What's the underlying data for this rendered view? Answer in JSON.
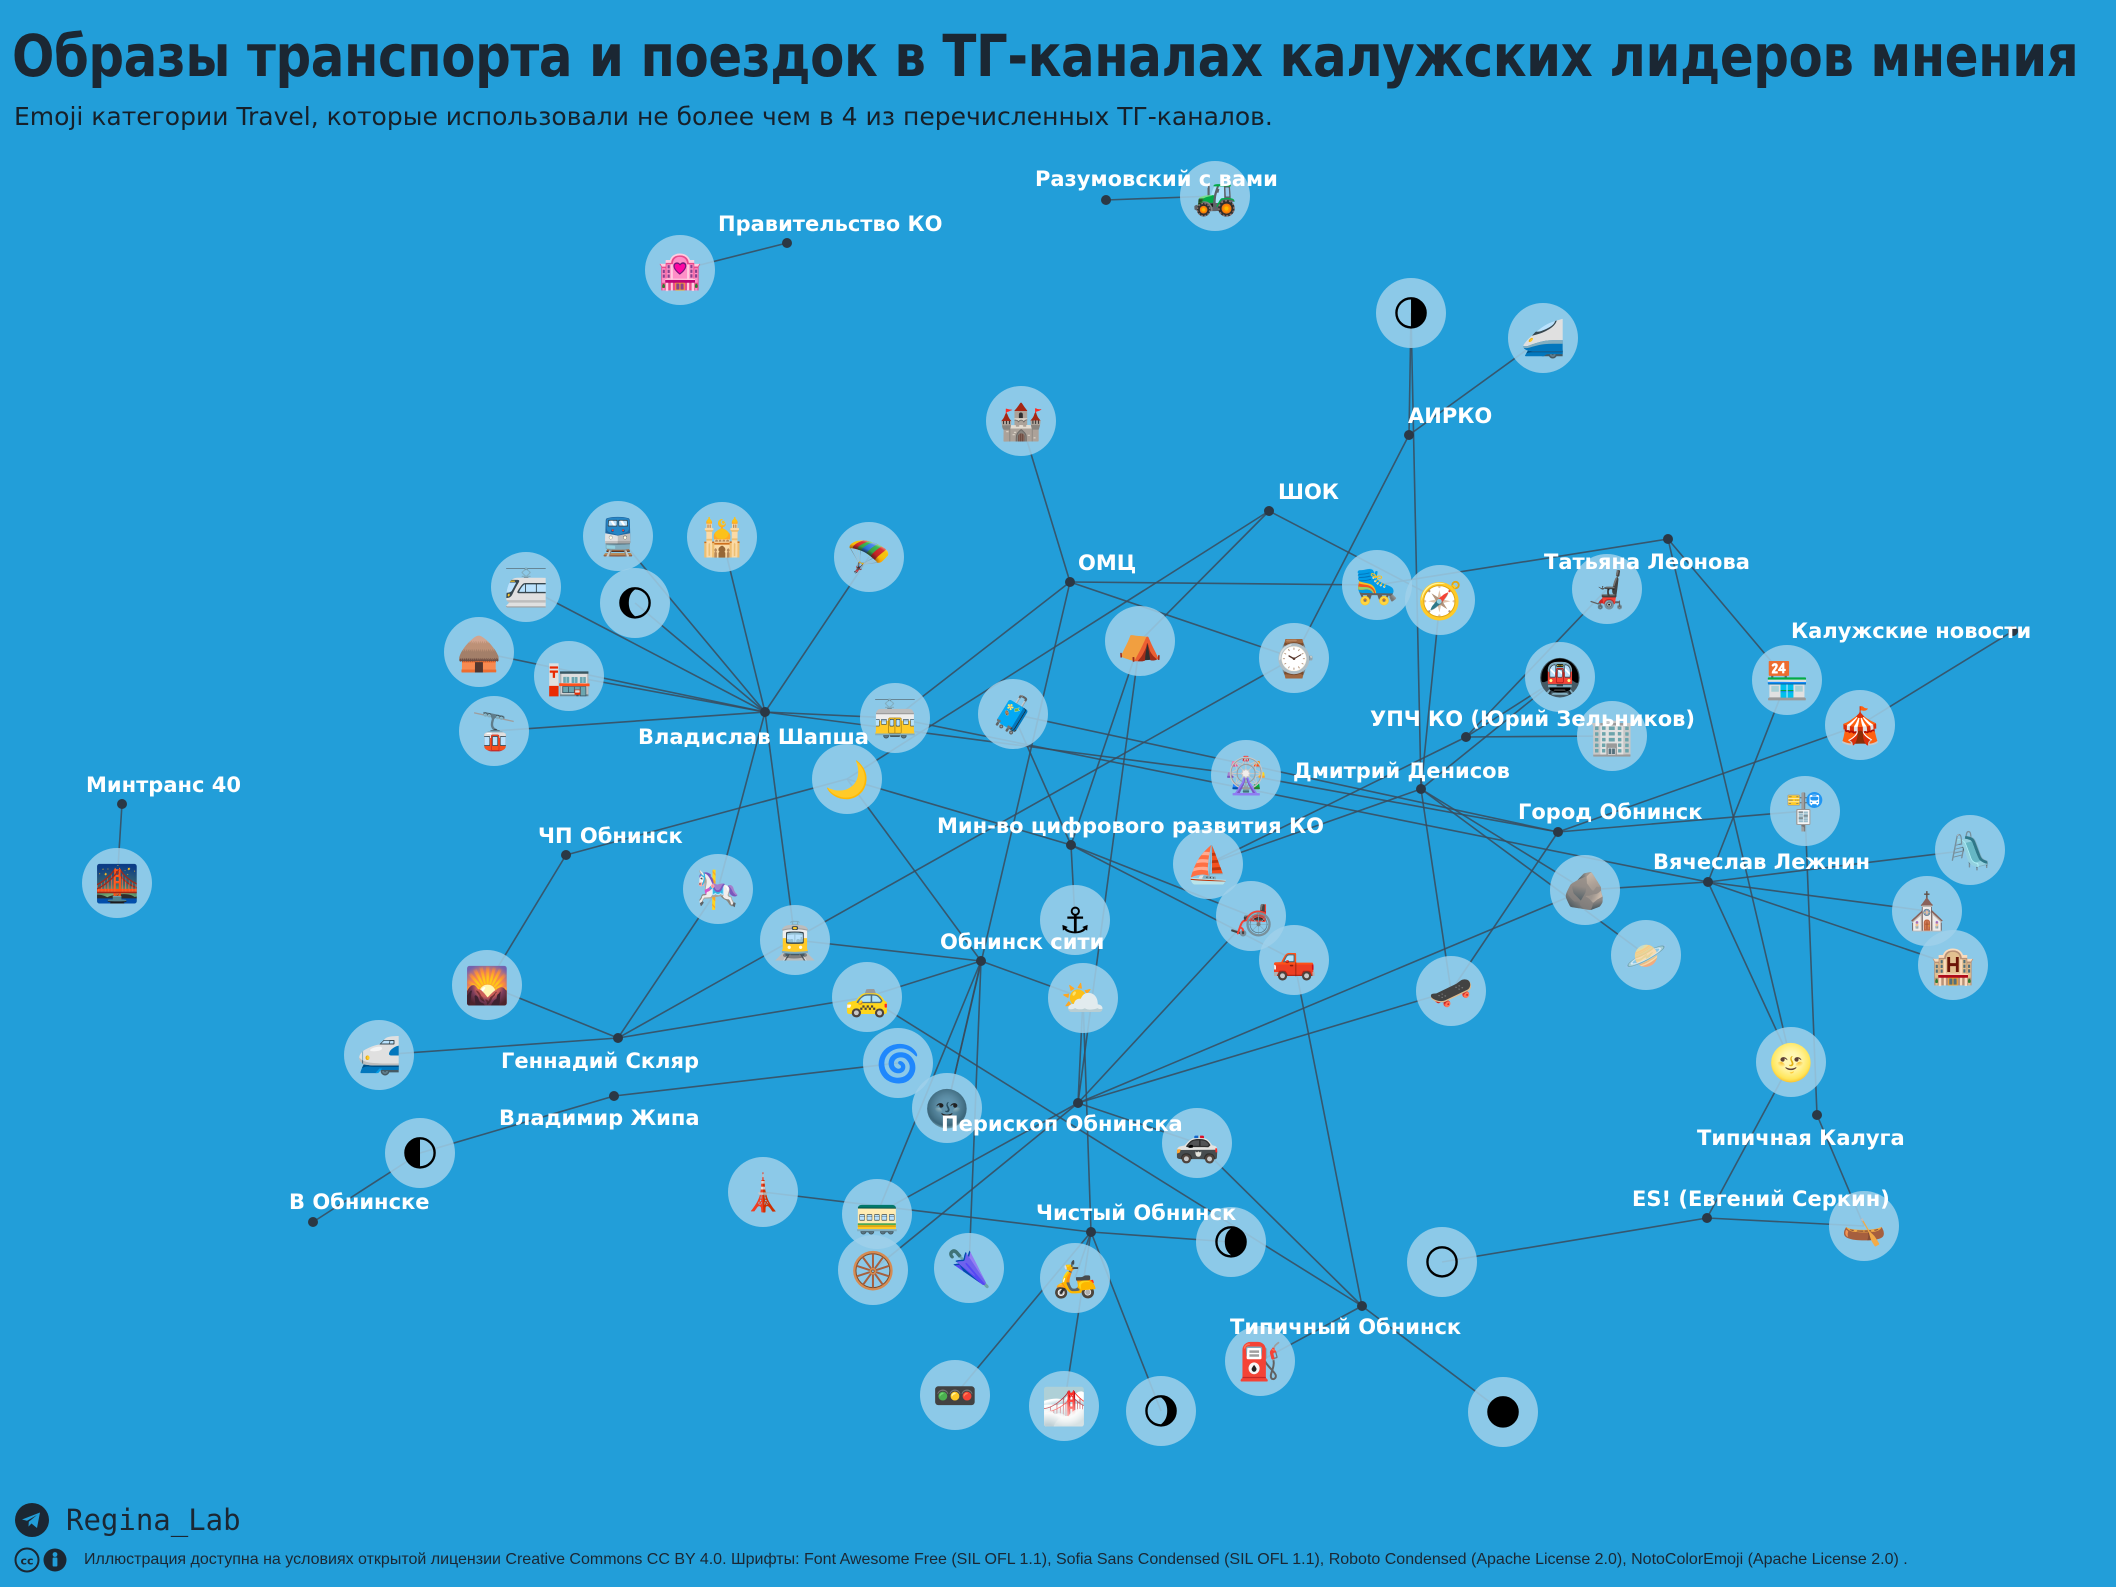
{
  "header": {
    "title": "Образы транспорта и поездок в ТГ-каналах калужских лидеров мнения",
    "subtitle": "Emoji категории Travel, которые использовали  не более чем в 4 из перечисленных ТГ-каналов."
  },
  "colors": {
    "background": "#229ed9",
    "edge": "#3a4a5a",
    "node_dot": "#2b3845",
    "emoji_circle": "#9fd0ea",
    "label": "#ffffff",
    "title": "#1b2733"
  },
  "channels": [
    {
      "id": "ch-razumovsky",
      "label": "Разумовский с вами"
    },
    {
      "id": "ch-pravitelstvo",
      "label": "Правительство КО"
    },
    {
      "id": "ch-airko",
      "label": "АИРКО"
    },
    {
      "id": "ch-shok",
      "label": "ШОК"
    },
    {
      "id": "ch-omc",
      "label": "ОМЦ"
    },
    {
      "id": "ch-leonova",
      "label": "Татьяна Леонова"
    },
    {
      "id": "ch-kaluga-news",
      "label": "Калужские новости"
    },
    {
      "id": "ch-upch",
      "label": "УПЧ КО (Юрий Зельников)"
    },
    {
      "id": "ch-shapsha",
      "label": "Владислав Шапша"
    },
    {
      "id": "ch-denisov",
      "label": "Дмитрий Денисов"
    },
    {
      "id": "ch-mintrans",
      "label": "Минтранс 40"
    },
    {
      "id": "ch-gorod-obninsk",
      "label": "Город Обнинск"
    },
    {
      "id": "ch-chp-obninsk",
      "label": "ЧП Обнинск"
    },
    {
      "id": "ch-mincifry",
      "label": "Мин-во цифрового развития КО"
    },
    {
      "id": "ch-lezhnin",
      "label": "Вячеслав Лежнин"
    },
    {
      "id": "ch-obninsk-city",
      "label": "Обнинск сити"
    },
    {
      "id": "ch-sklyar",
      "label": "Геннадий Скляр"
    },
    {
      "id": "ch-zhipa",
      "label": "Владимир Жипа"
    },
    {
      "id": "ch-periskop",
      "label": "Перископ Обнинска"
    },
    {
      "id": "ch-tipichnaya-kaluga",
      "label": "Типичная Калуга"
    },
    {
      "id": "ch-v-obninske",
      "label": "В Обнинске"
    },
    {
      "id": "ch-es-serkin",
      "label": "ES! (Евгений Серкин)"
    },
    {
      "id": "ch-chisty-obninsk",
      "label": "Чистый Обнинск"
    },
    {
      "id": "ch-tipichny-obninsk",
      "label": "Типичный Обнинск"
    }
  ],
  "emojis": [
    {
      "id": "e-tractor",
      "glyph": "🚜",
      "name": "tractor"
    },
    {
      "id": "e-love-hotel",
      "glyph": "🏩",
      "name": "love hotel"
    },
    {
      "id": "e-last-quarter-moon",
      "glyph": "🌗",
      "name": "last quarter moon"
    },
    {
      "id": "e-bullet-train",
      "glyph": "🚄",
      "name": "high-speed train"
    },
    {
      "id": "e-castle",
      "glyph": "🏰",
      "name": "castle"
    },
    {
      "id": "e-train",
      "glyph": "🚆",
      "name": "train"
    },
    {
      "id": "e-mosque",
      "glyph": "🕌",
      "name": "mosque"
    },
    {
      "id": "e-parachute",
      "glyph": "🪂",
      "name": "parachute"
    },
    {
      "id": "e-light-rail",
      "glyph": "🚈",
      "name": "light rail"
    },
    {
      "id": "e-waxing-gibbous",
      "glyph": "🌔",
      "name": "waxing gibbous moon"
    },
    {
      "id": "e-hut",
      "glyph": "🛖",
      "name": "hut"
    },
    {
      "id": "e-post-office",
      "glyph": "🏣",
      "name": "japanese post office"
    },
    {
      "id": "e-aerial-tramway",
      "glyph": "🚡",
      "name": "aerial tramway"
    },
    {
      "id": "e-tram-car",
      "glyph": "🚋",
      "name": "tram car"
    },
    {
      "id": "e-crescent-moon",
      "glyph": "🌙",
      "name": "crescent moon"
    },
    {
      "id": "e-luggage",
      "glyph": "🧳",
      "name": "luggage"
    },
    {
      "id": "e-tent",
      "glyph": "⛺",
      "name": "tent"
    },
    {
      "id": "e-watch",
      "glyph": "⌚",
      "name": "watch"
    },
    {
      "id": "e-roller-skate",
      "glyph": "🛼",
      "name": "roller skate"
    },
    {
      "id": "e-compass",
      "glyph": "🧭",
      "name": "compass"
    },
    {
      "id": "e-wheelchair",
      "glyph": "🦼",
      "name": "motorized wheelchair"
    },
    {
      "id": "e-metro",
      "glyph": "🚇",
      "name": "metro"
    },
    {
      "id": "e-convenience-store",
      "glyph": "🏪",
      "name": "convenience store"
    },
    {
      "id": "e-circus-tent",
      "glyph": "🎪",
      "name": "circus tent"
    },
    {
      "id": "e-office-building",
      "glyph": "🏢",
      "name": "office building"
    },
    {
      "id": "e-ferris-wheel",
      "glyph": "🎡",
      "name": "ferris wheel"
    },
    {
      "id": "e-bus-stop",
      "glyph": "🚏",
      "name": "bus stop"
    },
    {
      "id": "e-playground-slide",
      "glyph": "🛝",
      "name": "playground slide"
    },
    {
      "id": "e-bridge-at-night",
      "glyph": "🌉",
      "name": "bridge at night"
    },
    {
      "id": "e-carousel-horse",
      "glyph": "🎠",
      "name": "carousel horse"
    },
    {
      "id": "e-sailboat",
      "glyph": "⛵",
      "name": "sailboat"
    },
    {
      "id": "e-rock",
      "glyph": "🪨",
      "name": "rock"
    },
    {
      "id": "e-anchor",
      "glyph": "⚓",
      "name": "anchor"
    },
    {
      "id": "e-manual-wheelchair",
      "glyph": "🦽",
      "name": "manual wheelchair"
    },
    {
      "id": "e-church",
      "glyph": "⛪",
      "name": "church"
    },
    {
      "id": "e-sunrise-mountains",
      "glyph": "🌄",
      "name": "sunrise over mountains"
    },
    {
      "id": "e-tram",
      "glyph": "🚊",
      "name": "tram"
    },
    {
      "id": "e-pickup-truck",
      "glyph": "🛻",
      "name": "pickup truck"
    },
    {
      "id": "e-ringed-planet",
      "glyph": "🪐",
      "name": "ringed planet"
    },
    {
      "id": "e-hotel",
      "glyph": "🏨",
      "name": "hotel"
    },
    {
      "id": "e-taxi",
      "glyph": "🚕",
      "name": "taxi"
    },
    {
      "id": "e-sun-behind-cloud",
      "glyph": "⛅",
      "name": "sun behind cloud"
    },
    {
      "id": "e-skateboard",
      "glyph": "🛹",
      "name": "skateboard"
    },
    {
      "id": "e-shinkansen",
      "glyph": "🚅",
      "name": "bullet train"
    },
    {
      "id": "e-cyclone",
      "glyph": "🌀",
      "name": "cyclone"
    },
    {
      "id": "e-new-moon-face",
      "glyph": "🌚",
      "name": "new moon face"
    },
    {
      "id": "e-full-moon-face",
      "glyph": "🌝",
      "name": "full moon face"
    },
    {
      "id": "e-first-quarter-moon",
      "glyph": "🌓",
      "name": "first quarter moon"
    },
    {
      "id": "e-police-car",
      "glyph": "🚓",
      "name": "police car"
    },
    {
      "id": "e-tokyo-tower",
      "glyph": "🗼",
      "name": "tokyo tower"
    },
    {
      "id": "e-railway-car",
      "glyph": "🚃",
      "name": "railway car"
    },
    {
      "id": "e-canoe",
      "glyph": "🛶",
      "name": "canoe"
    },
    {
      "id": "e-wheel",
      "glyph": "🛞",
      "name": "wheel"
    },
    {
      "id": "e-umbrella",
      "glyph": "🌂",
      "name": "closed umbrella"
    },
    {
      "id": "e-motor-scooter",
      "glyph": "🛵",
      "name": "motor scooter"
    },
    {
      "id": "e-waning-crescent",
      "glyph": "🌘",
      "name": "waning crescent moon"
    },
    {
      "id": "e-full-moon",
      "glyph": "🌕",
      "name": "full moon"
    },
    {
      "id": "e-fuel-pump",
      "glyph": "⛽",
      "name": "fuel pump"
    },
    {
      "id": "e-traffic-light",
      "glyph": "🚥",
      "name": "horizontal traffic light"
    },
    {
      "id": "e-bridge-fog",
      "glyph": "🌁",
      "name": "foggy"
    },
    {
      "id": "e-waning-gibbous",
      "glyph": "🌖",
      "name": "waning gibbous moon"
    },
    {
      "id": "e-new-moon",
      "glyph": "🌑",
      "name": "new moon"
    }
  ],
  "edges": [
    [
      "ch-razumovsky",
      "e-tractor"
    ],
    [
      "ch-pravitelstvo",
      "e-love-hotel"
    ],
    [
      "ch-airko",
      "e-last-quarter-moon"
    ],
    [
      "ch-airko",
      "e-bullet-train"
    ],
    [
      "ch-airko",
      "e-watch"
    ],
    [
      "ch-omc",
      "e-castle"
    ],
    [
      "ch-omc",
      "e-roller-skate"
    ],
    [
      "ch-omc",
      "e-tram-car"
    ],
    [
      "ch-omc",
      "e-watch"
    ],
    [
      "ch-omc",
      "e-new-moon-face"
    ],
    [
      "ch-shok",
      "e-tent"
    ],
    [
      "ch-shok",
      "e-compass"
    ],
    [
      "ch-shok",
      "e-crescent-moon"
    ],
    [
      "ch-leonova",
      "e-roller-skate"
    ],
    [
      "ch-leonova",
      "e-convenience-store"
    ],
    [
      "ch-leonova",
      "e-full-moon-face"
    ],
    [
      "ch-kaluga-news",
      "e-circus-tent"
    ],
    [
      "ch-upch",
      "e-wheelchair"
    ],
    [
      "ch-upch",
      "e-metro"
    ],
    [
      "ch-upch",
      "e-office-building"
    ],
    [
      "ch-upch",
      "e-sailboat"
    ],
    [
      "ch-shapsha",
      "e-train"
    ],
    [
      "ch-shapsha",
      "e-mosque"
    ],
    [
      "ch-shapsha",
      "e-parachute"
    ],
    [
      "ch-shapsha",
      "e-light-rail"
    ],
    [
      "ch-shapsha",
      "e-waxing-gibbous"
    ],
    [
      "ch-shapsha",
      "e-hut"
    ],
    [
      "ch-shapsha",
      "e-post-office"
    ],
    [
      "ch-shapsha",
      "e-aerial-tramway"
    ],
    [
      "ch-shapsha",
      "e-tram-car"
    ],
    [
      "ch-shapsha",
      "e-carousel-horse"
    ],
    [
      "ch-shapsha",
      "e-tram"
    ],
    [
      "ch-shapsha",
      "e-ferris-wheel"
    ],
    [
      "ch-denisov",
      "e-compass"
    ],
    [
      "ch-denisov",
      "e-metro"
    ],
    [
      "ch-denisov",
      "e-sailboat"
    ],
    [
      "ch-denisov",
      "e-rock"
    ],
    [
      "ch-denisov",
      "e-ringed-planet"
    ],
    [
      "ch-denisov",
      "e-skateboard"
    ],
    [
      "ch-denisov",
      "e-last-quarter-moon"
    ],
    [
      "ch-mintrans",
      "e-bridge-at-night"
    ],
    [
      "ch-gorod-obninsk",
      "e-bus-stop"
    ],
    [
      "ch-gorod-obninsk",
      "e-circus-tent"
    ],
    [
      "ch-gorod-obninsk",
      "e-ferris-wheel"
    ],
    [
      "ch-gorod-obninsk",
      "e-skateboard"
    ],
    [
      "ch-gorod-obninsk",
      "e-luggage"
    ],
    [
      "ch-chp-obninsk",
      "e-crescent-moon"
    ],
    [
      "ch-chp-obninsk",
      "e-sunrise-mountains"
    ],
    [
      "ch-mincifry",
      "e-luggage"
    ],
    [
      "ch-mincifry",
      "e-crescent-moon"
    ],
    [
      "ch-mincifry",
      "e-manual-wheelchair"
    ],
    [
      "ch-mincifry",
      "e-pickup-truck"
    ],
    [
      "ch-mincifry",
      "e-anchor"
    ],
    [
      "ch-mincifry",
      "e-tent"
    ],
    [
      "ch-lezhnin",
      "e-convenience-store"
    ],
    [
      "ch-lezhnin",
      "e-playground-slide"
    ],
    [
      "ch-lezhnin",
      "e-church"
    ],
    [
      "ch-lezhnin",
      "e-hotel"
    ],
    [
      "ch-lezhnin",
      "e-rock"
    ],
    [
      "ch-lezhnin",
      "e-full-moon-face"
    ],
    [
      "ch-lezhnin",
      "e-tram-car"
    ],
    [
      "ch-obninsk-city",
      "e-tram"
    ],
    [
      "ch-obninsk-city",
      "e-taxi"
    ],
    [
      "ch-obninsk-city",
      "e-sun-behind-cloud"
    ],
    [
      "ch-obninsk-city",
      "e-crescent-moon"
    ],
    [
      "ch-obninsk-city",
      "e-new-moon-face"
    ],
    [
      "ch-obninsk-city",
      "e-railway-car"
    ],
    [
      "ch-obninsk-city",
      "e-umbrella"
    ],
    [
      "ch-sklyar",
      "e-carousel-horse"
    ],
    [
      "ch-sklyar",
      "e-shinkansen"
    ],
    [
      "ch-sklyar",
      "e-taxi"
    ],
    [
      "ch-sklyar",
      "e-sunrise-mountains"
    ],
    [
      "ch-sklyar",
      "e-watch"
    ],
    [
      "ch-zhipa",
      "e-first-quarter-moon"
    ],
    [
      "ch-zhipa",
      "e-cyclone"
    ],
    [
      "ch-periskop",
      "e-sun-behind-cloud"
    ],
    [
      "ch-periskop",
      "e-police-car"
    ],
    [
      "ch-periskop",
      "e-railway-car"
    ],
    [
      "ch-periskop",
      "e-wheel"
    ],
    [
      "ch-periskop",
      "e-skateboard"
    ],
    [
      "ch-periskop",
      "e-manual-wheelchair"
    ],
    [
      "ch-periskop",
      "e-rock"
    ],
    [
      "ch-periskop",
      "e-tent"
    ],
    [
      "ch-tipichnaya-kaluga",
      "e-canoe"
    ],
    [
      "ch-tipichnaya-kaluga",
      "e-bus-stop"
    ],
    [
      "ch-v-obninske",
      "e-first-quarter-moon"
    ],
    [
      "ch-es-serkin",
      "e-canoe"
    ],
    [
      "ch-es-serkin",
      "e-full-moon"
    ],
    [
      "ch-es-serkin",
      "e-full-moon-face"
    ],
    [
      "ch-chisty-obninsk",
      "e-motor-scooter"
    ],
    [
      "ch-chisty-obninsk",
      "e-traffic-light"
    ],
    [
      "ch-chisty-obninsk",
      "e-bridge-fog"
    ],
    [
      "ch-chisty-obninsk",
      "e-waning-gibbous"
    ],
    [
      "ch-chisty-obninsk",
      "e-waning-crescent"
    ],
    [
      "ch-chisty-obninsk",
      "e-tokyo-tower"
    ],
    [
      "ch-chisty-obninsk",
      "e-sun-behind-cloud"
    ],
    [
      "ch-tipichny-obninsk",
      "e-fuel-pump"
    ],
    [
      "ch-tipichny-obninsk",
      "e-new-moon"
    ],
    [
      "ch-tipichny-obninsk",
      "e-police-car"
    ],
    [
      "ch-tipichny-obninsk",
      "e-pickup-truck"
    ],
    [
      "ch-tipichny-obninsk",
      "e-taxi"
    ]
  ],
  "footer": {
    "brand": "Regina_Lab",
    "license": "Иллюстрация доступна на условиях открытой лицензии Creative Commons CC BY 4.0.  Шрифты: Font  Awesome Free (SIL OFL 1.1), Sofia Sans Condensed (SIL OFL 1.1), Roboto Condensed (Apache License 2.0), NotoColorEmoji (Apache License 2.0) ."
  }
}
